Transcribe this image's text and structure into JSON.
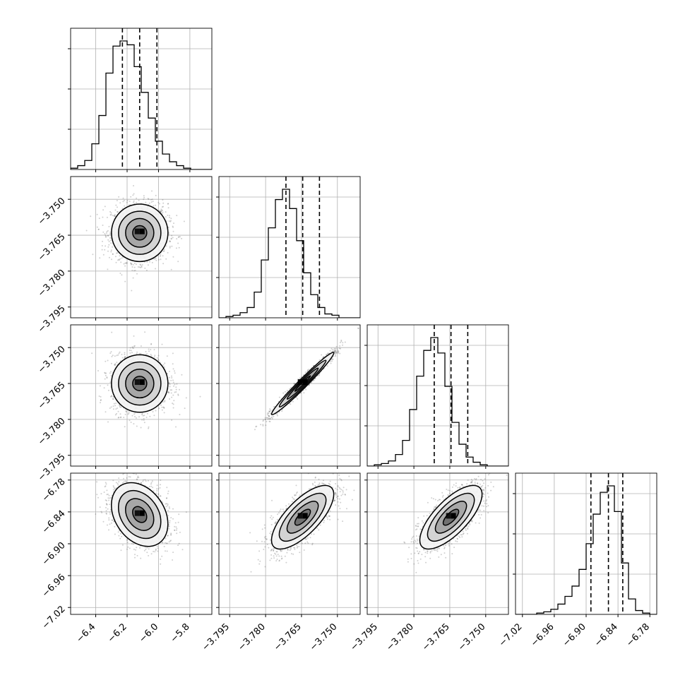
{
  "chart_data": {
    "type": "corner",
    "parameters": [
      {
        "index": 0,
        "ticks": [
          -6.4,
          -6.2,
          -6.0,
          -5.8
        ],
        "tick_labels": [
          "−6.4",
          "−6.2",
          "−6.0",
          "−5.8"
        ],
        "range": [
          -6.56,
          -5.66
        ],
        "quantiles": [
          -6.23,
          -6.12,
          -6.01
        ]
      },
      {
        "index": 1,
        "ticks": [
          -3.795,
          -3.78,
          -3.765,
          -3.75
        ],
        "tick_labels": [
          "−3.795",
          "−3.780",
          "−3.765",
          "−3.750"
        ],
        "range": [
          -3.7995,
          -3.7405
        ],
        "quantiles": [
          -3.7715,
          -3.7645,
          -3.7575
        ]
      },
      {
        "index": 2,
        "ticks": [
          -3.795,
          -3.78,
          -3.765,
          -3.75
        ],
        "tick_labels": [
          "−3.795",
          "−3.780",
          "−3.765",
          "−3.750"
        ],
        "range": [
          -3.7995,
          -3.7405
        ],
        "quantiles": [
          -3.7715,
          -3.7645,
          -3.7575
        ]
      },
      {
        "index": 3,
        "ticks": [
          -7.02,
          -6.96,
          -6.9,
          -6.84,
          -6.78
        ],
        "tick_labels": [
          "−7.02",
          "−6.96",
          "−6.90",
          "−6.84",
          "−6.78"
        ],
        "range": [
          -7.033,
          -6.767
        ],
        "quantiles": [
          -6.891,
          -6.858,
          -6.831
        ]
      }
    ],
    "histograms": [
      {
        "param": 0,
        "x_range": [
          -6.56,
          -5.66
        ],
        "counts": [
          1,
          3,
          7,
          20,
          42,
          75,
          96,
          100,
          97,
          80,
          60,
          40,
          22,
          12,
          6,
          3,
          1,
          0,
          0,
          0
        ]
      },
      {
        "param": 1,
        "x_range": [
          -3.7995,
          -3.7405
        ],
        "counts": [
          0,
          1,
          2,
          4,
          8,
          20,
          45,
          70,
          92,
          100,
          85,
          60,
          35,
          18,
          8,
          3,
          2,
          0,
          0,
          0
        ]
      },
      {
        "param": 2,
        "x_range": [
          -3.7995,
          -3.7405
        ],
        "counts": [
          0,
          1,
          2,
          4,
          9,
          20,
          44,
          70,
          90,
          100,
          88,
          62,
          34,
          17,
          7,
          3,
          1,
          0,
          0,
          0
        ]
      },
      {
        "param": 3,
        "x_range": [
          -7.033,
          -6.767
        ],
        "counts": [
          0,
          0,
          0,
          1,
          2,
          4,
          8,
          14,
          22,
          35,
          55,
          78,
          95,
          100,
          80,
          40,
          12,
          3,
          1,
          0
        ]
      }
    ],
    "joint_2d": [
      {
        "x_param": 0,
        "y_param": 1,
        "center": [
          -6.12,
          -3.764
        ],
        "sigma": [
          0.09,
          0.006
        ],
        "correlation": 0.0
      },
      {
        "x_param": 0,
        "y_param": 2,
        "center": [
          -6.12,
          -3.765
        ],
        "sigma": [
          0.09,
          0.006
        ],
        "correlation": 0.0
      },
      {
        "x_param": 1,
        "y_param": 2,
        "center": [
          -3.7645,
          -3.765
        ],
        "sigma": [
          0.0065,
          0.0065
        ],
        "correlation": 0.98
      },
      {
        "x_param": 0,
        "y_param": 3,
        "center": [
          -6.12,
          -6.845
        ],
        "sigma": [
          0.09,
          0.03
        ],
        "correlation": -0.3
      },
      {
        "x_param": 1,
        "y_param": 3,
        "center": [
          -3.7645,
          -6.85
        ],
        "sigma": [
          0.0065,
          0.03
        ],
        "correlation": 0.72
      },
      {
        "x_param": 2,
        "y_param": 3,
        "center": [
          -3.7645,
          -6.85
        ],
        "sigma": [
          0.0065,
          0.03
        ],
        "correlation": 0.72
      }
    ],
    "contour_levels_sigma": [
      0.5,
      1.0,
      1.5,
      2.0
    ],
    "grid": true,
    "colors": {
      "line": "#000000",
      "grid": "#b0b0b0",
      "scatter": "#555555",
      "background": "#ffffff"
    }
  }
}
